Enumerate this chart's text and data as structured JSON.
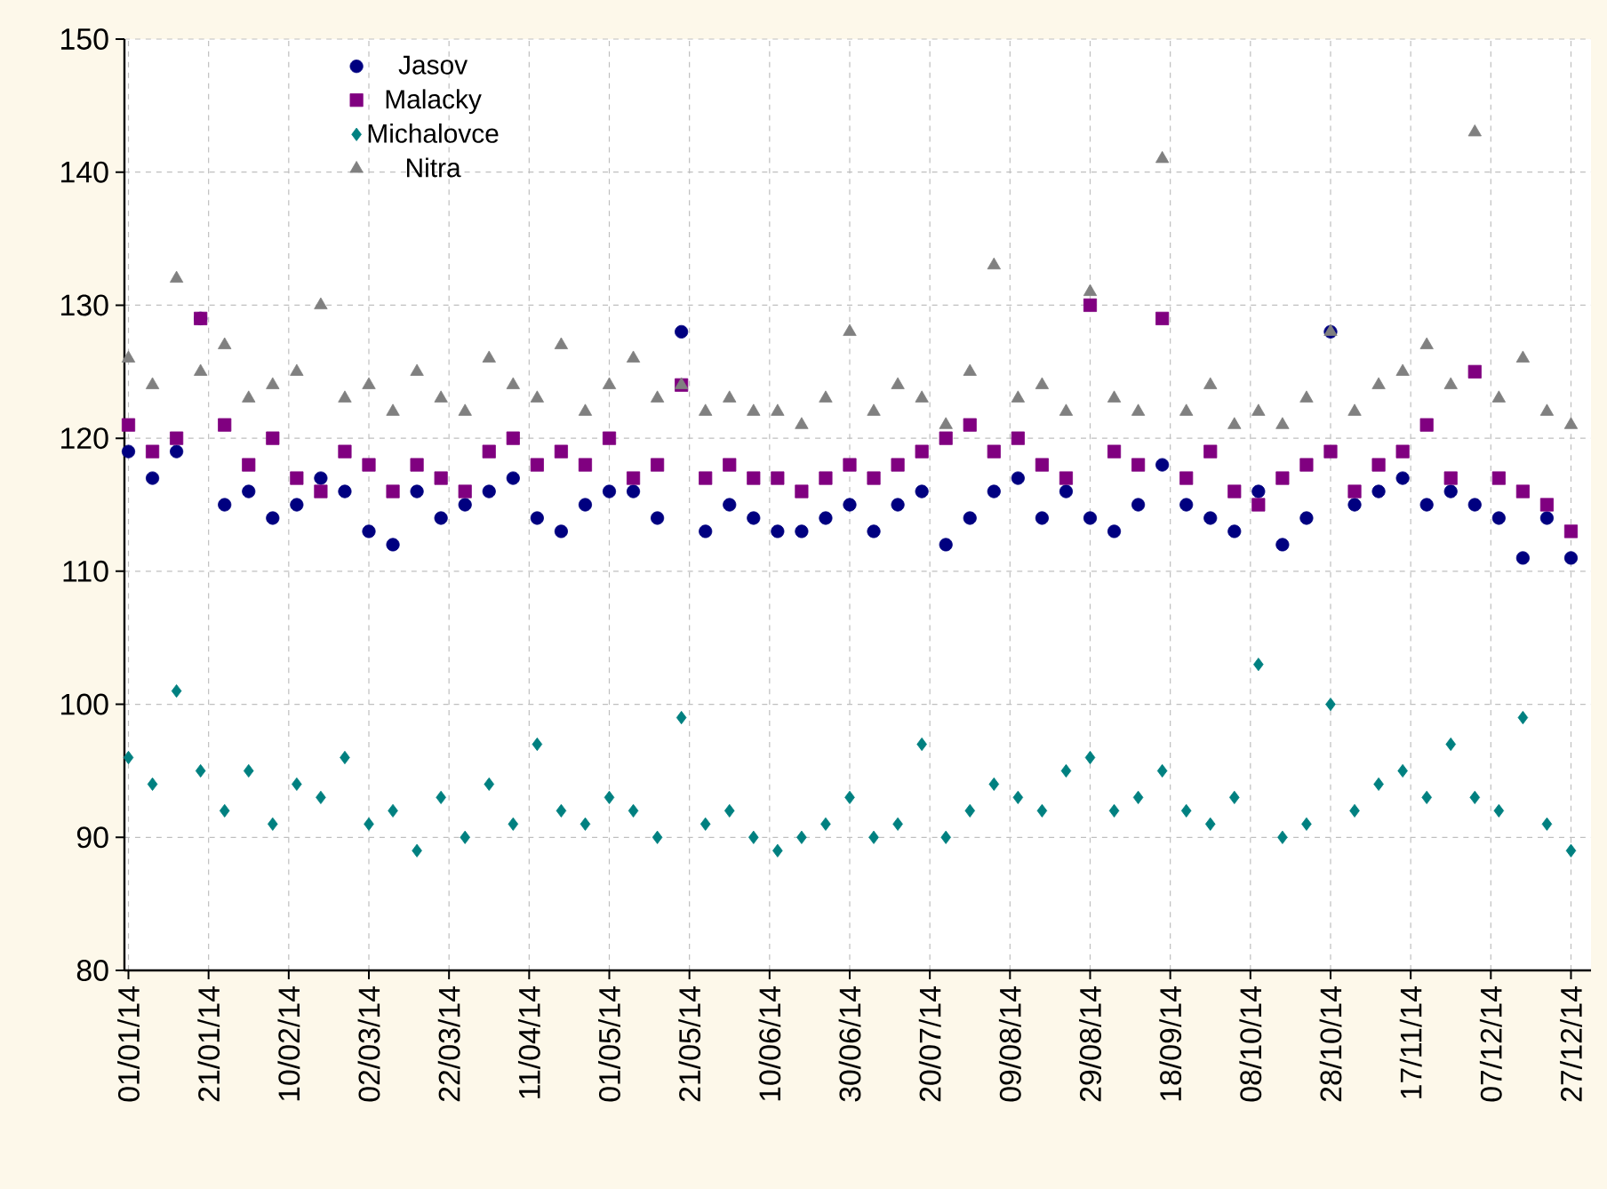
{
  "chart_data": {
    "type": "scatter",
    "x": [
      "2014-01-01",
      "2014-01-07",
      "2014-01-13",
      "2014-01-19",
      "2014-01-25",
      "2014-01-31",
      "2014-02-06",
      "2014-02-12",
      "2014-02-18",
      "2014-02-24",
      "2014-03-02",
      "2014-03-08",
      "2014-03-14",
      "2014-03-20",
      "2014-03-26",
      "2014-04-01",
      "2014-04-07",
      "2014-04-13",
      "2014-04-19",
      "2014-04-25",
      "2014-05-01",
      "2014-05-07",
      "2014-05-13",
      "2014-05-19",
      "2014-05-25",
      "2014-05-31",
      "2014-06-06",
      "2014-06-12",
      "2014-06-18",
      "2014-06-24",
      "2014-06-30",
      "2014-07-06",
      "2014-07-12",
      "2014-07-18",
      "2014-07-24",
      "2014-07-30",
      "2014-08-05",
      "2014-08-11",
      "2014-08-17",
      "2014-08-23",
      "2014-08-29",
      "2014-09-04",
      "2014-09-10",
      "2014-09-16",
      "2014-09-22",
      "2014-09-28",
      "2014-10-04",
      "2014-10-10",
      "2014-10-16",
      "2014-10-22",
      "2014-10-28",
      "2014-11-03",
      "2014-11-09",
      "2014-11-15",
      "2014-11-21",
      "2014-11-27",
      "2014-12-03",
      "2014-12-09",
      "2014-12-15",
      "2014-12-21",
      "2014-12-27"
    ],
    "series": [
      {
        "name": "Jasov",
        "color": "#000080",
        "marker": "circle",
        "values": [
          119,
          117,
          119,
          129,
          115,
          116,
          114,
          115,
          117,
          116,
          113,
          112,
          116,
          114,
          115,
          116,
          117,
          114,
          113,
          115,
          116,
          116,
          114,
          128,
          113,
          115,
          114,
          113,
          113,
          114,
          115,
          113,
          115,
          116,
          112,
          114,
          116,
          117,
          114,
          116,
          114,
          113,
          115,
          118,
          115,
          114,
          113,
          116,
          112,
          114,
          128,
          115,
          116,
          117,
          115,
          116,
          115,
          114,
          111,
          114,
          111
        ]
      },
      {
        "name": "Malacky",
        "color": "#800080",
        "marker": "square",
        "values": [
          121,
          119,
          120,
          129,
          121,
          118,
          120,
          117,
          116,
          119,
          118,
          116,
          118,
          117,
          116,
          119,
          120,
          118,
          119,
          118,
          120,
          117,
          118,
          124,
          117,
          118,
          117,
          117,
          116,
          117,
          118,
          117,
          118,
          119,
          120,
          121,
          119,
          120,
          118,
          117,
          130,
          119,
          118,
          129,
          117,
          119,
          116,
          115,
          117,
          118,
          119,
          116,
          118,
          119,
          121,
          117,
          125,
          117,
          116,
          115,
          113
        ]
      },
      {
        "name": "Michalovce",
        "color": "#008080",
        "marker": "diamond",
        "values": [
          96,
          94,
          101,
          95,
          92,
          95,
          91,
          94,
          93,
          96,
          91,
          92,
          89,
          93,
          90,
          94,
          91,
          97,
          92,
          91,
          93,
          92,
          90,
          99,
          91,
          92,
          90,
          89,
          90,
          91,
          93,
          90,
          91,
          97,
          90,
          92,
          94,
          93,
          92,
          95,
          96,
          92,
          93,
          95,
          92,
          91,
          93,
          103,
          90,
          91,
          100,
          92,
          94,
          95,
          93,
          97,
          93,
          92,
          99,
          91,
          89
        ]
      },
      {
        "name": "Nitra",
        "color": "#808080",
        "marker": "triangle",
        "values": [
          126,
          124,
          132,
          125,
          127,
          123,
          124,
          125,
          130,
          123,
          124,
          122,
          125,
          123,
          122,
          126,
          124,
          123,
          127,
          122,
          124,
          126,
          123,
          124,
          122,
          123,
          122,
          122,
          121,
          123,
          128,
          122,
          124,
          123,
          121,
          125,
          133,
          123,
          124,
          122,
          131,
          123,
          122,
          141,
          122,
          124,
          121,
          122,
          121,
          123,
          128,
          122,
          124,
          125,
          127,
          124,
          143,
          123,
          126,
          122,
          121
        ]
      }
    ],
    "xlim": [
      "2013-12-31",
      "2015-01-01"
    ],
    "xticks": [
      {
        "value": "2014-01-01",
        "label": "01/01/14"
      },
      {
        "value": "2014-01-21",
        "label": "21/01/14"
      },
      {
        "value": "2014-02-10",
        "label": "10/02/14"
      },
      {
        "value": "2014-03-02",
        "label": "02/03/14"
      },
      {
        "value": "2014-03-22",
        "label": "22/03/14"
      },
      {
        "value": "2014-04-11",
        "label": "11/04/14"
      },
      {
        "value": "2014-05-01",
        "label": "01/05/14"
      },
      {
        "value": "2014-05-21",
        "label": "21/05/14"
      },
      {
        "value": "2014-06-10",
        "label": "10/06/14"
      },
      {
        "value": "2014-06-30",
        "label": "30/06/14"
      },
      {
        "value": "2014-07-20",
        "label": "20/07/14"
      },
      {
        "value": "2014-08-09",
        "label": "09/08/14"
      },
      {
        "value": "2014-08-29",
        "label": "29/08/14"
      },
      {
        "value": "2014-09-18",
        "label": "18/09/14"
      },
      {
        "value": "2014-10-08",
        "label": "08/10/14"
      },
      {
        "value": "2014-10-28",
        "label": "28/10/14"
      },
      {
        "value": "2014-11-17",
        "label": "17/11/14"
      },
      {
        "value": "2014-12-07",
        "label": "07/12/14"
      },
      {
        "value": "2014-12-27",
        "label": "27/12/14"
      }
    ],
    "ylim": [
      80,
      150
    ],
    "yticks": [
      80,
      90,
      100,
      110,
      120,
      130,
      140,
      150
    ],
    "grid": true,
    "legend": "top left"
  }
}
